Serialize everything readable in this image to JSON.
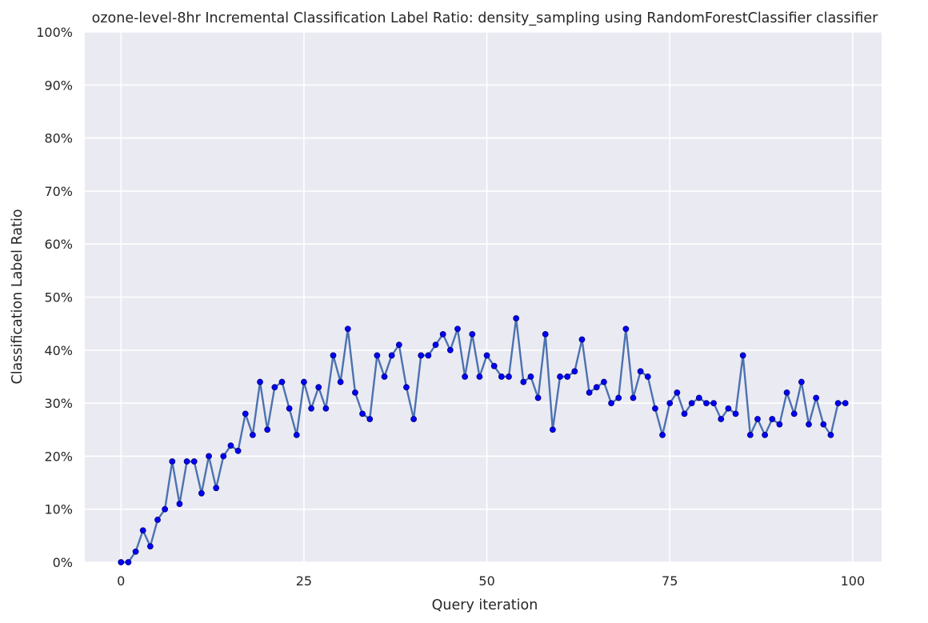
{
  "chart_data": {
    "type": "line",
    "title": "ozone-level-8hr Incremental Classification Label Ratio: density_sampling using RandomForestClassifier classifier",
    "xlabel": "Query iteration",
    "ylabel": "Classification Label Ratio",
    "xlim": [
      -4.95,
      103.95
    ],
    "ylim": [
      0,
      1
    ],
    "x_ticks": [
      0,
      25,
      50,
      75,
      100
    ],
    "x_tick_labels": [
      "0",
      "25",
      "50",
      "75",
      "100"
    ],
    "y_ticks": [
      0,
      0.1,
      0.2,
      0.3,
      0.4,
      0.5,
      0.6,
      0.7,
      0.8,
      0.9,
      1.0
    ],
    "y_tick_labels": [
      "0%",
      "10%",
      "20%",
      "30%",
      "40%",
      "50%",
      "60%",
      "70%",
      "80%",
      "90%",
      "100%"
    ],
    "grid": true,
    "legend": "none",
    "colors": {
      "background": "#eaeaf2",
      "grid": "#ffffff",
      "line": "#4c72b0",
      "marker_fill": "#0000ff",
      "marker_edge": "#00008b"
    },
    "series": [
      {
        "x": [
          0,
          1,
          2,
          3,
          4,
          5,
          6,
          7,
          8,
          9,
          10,
          11,
          12,
          13,
          14,
          15,
          16,
          17,
          18,
          19,
          20,
          21,
          22,
          23,
          24,
          25,
          26,
          27,
          28,
          29,
          30,
          31,
          32,
          33,
          34,
          35,
          36,
          37,
          38,
          39,
          40,
          41,
          42,
          43,
          44,
          45,
          46,
          47,
          48,
          49,
          50,
          51,
          52,
          53,
          54,
          55,
          56,
          57,
          58,
          59,
          60,
          61,
          62,
          63,
          64,
          65,
          66,
          67,
          68,
          69,
          70,
          71,
          72,
          73,
          74,
          75,
          76,
          77,
          78,
          79,
          80,
          81,
          82,
          83,
          84,
          85,
          86,
          87,
          88,
          89,
          90,
          91,
          92,
          93,
          94,
          95,
          96,
          97,
          98,
          99
        ],
        "values": [
          0.0,
          0.0,
          0.02,
          0.06,
          0.03,
          0.08,
          0.1,
          0.19,
          0.11,
          0.19,
          0.19,
          0.13,
          0.2,
          0.14,
          0.2,
          0.22,
          0.21,
          0.28,
          0.24,
          0.34,
          0.25,
          0.33,
          0.34,
          0.29,
          0.24,
          0.34,
          0.29,
          0.33,
          0.29,
          0.39,
          0.34,
          0.44,
          0.32,
          0.28,
          0.27,
          0.39,
          0.35,
          0.39,
          0.41,
          0.33,
          0.27,
          0.39,
          0.39,
          0.41,
          0.43,
          0.4,
          0.44,
          0.35,
          0.43,
          0.35,
          0.39,
          0.37,
          0.35,
          0.35,
          0.46,
          0.34,
          0.35,
          0.31,
          0.43,
          0.25,
          0.35,
          0.35,
          0.36,
          0.42,
          0.32,
          0.33,
          0.34,
          0.3,
          0.31,
          0.44,
          0.31,
          0.36,
          0.35,
          0.29,
          0.24,
          0.3,
          0.32,
          0.28,
          0.3,
          0.31,
          0.3,
          0.3,
          0.27,
          0.29,
          0.28,
          0.39,
          0.24,
          0.27,
          0.24,
          0.27,
          0.26,
          0.32,
          0.28,
          0.34,
          0.26,
          0.31,
          0.26,
          0.24,
          0.3,
          0.3
        ]
      }
    ]
  }
}
